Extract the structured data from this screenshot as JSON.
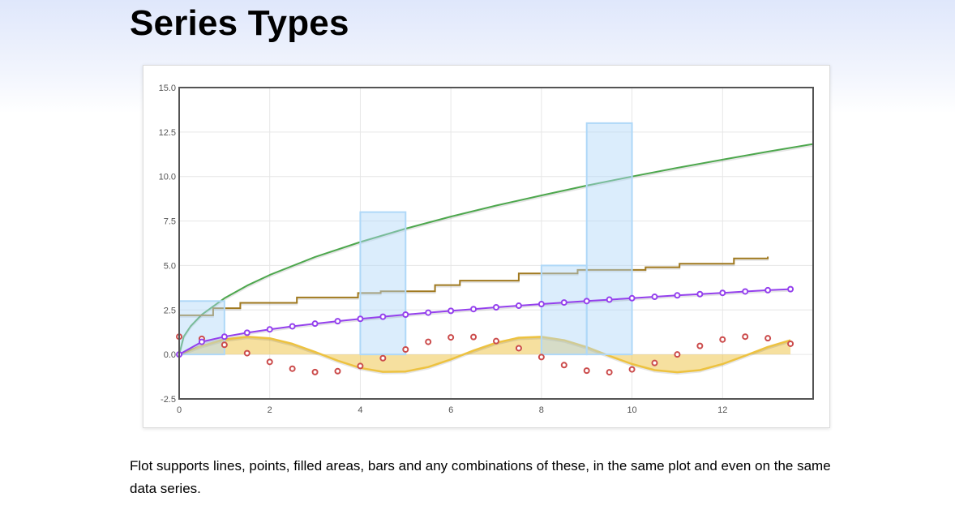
{
  "page": {
    "title": "Series Types",
    "description": "Flot supports lines, points, filled areas, bars and any combinations of these, in the same plot and even on the same data series."
  },
  "chart_data": {
    "type": "line",
    "xlim": [
      0,
      14
    ],
    "ylim": [
      -2.5,
      15
    ],
    "grid": true,
    "legend": "none",
    "x_ticks": [
      0,
      2,
      4,
      6,
      8,
      10,
      12
    ],
    "y_ticks": [
      -2.5,
      0,
      2.5,
      5,
      7.5,
      10,
      12.5,
      15
    ],
    "x_tick_labels": [
      "0",
      "2",
      "4",
      "6",
      "8",
      "10",
      "12"
    ],
    "y_tick_labels": [
      "-2.5",
      "0.0",
      "2.5",
      "5.0",
      "7.5",
      "10.0",
      "12.5",
      "15.0"
    ],
    "series": [
      {
        "kind": "area",
        "description": "sin(x) filled line",
        "color": "#edc240",
        "x": [
          0,
          0.5,
          1,
          1.5,
          2,
          2.5,
          3,
          3.5,
          4,
          4.5,
          5,
          5.5,
          6,
          6.5,
          7,
          7.5,
          8,
          8.5,
          9,
          9.5,
          10,
          10.5,
          11,
          11.5,
          12,
          12.5,
          13,
          13.5
        ],
        "y": [
          0,
          0.48,
          0.84,
          1.0,
          0.91,
          0.6,
          0.14,
          -0.35,
          -0.76,
          -0.98,
          -0.96,
          -0.71,
          -0.28,
          0.22,
          0.66,
          0.94,
          0.99,
          0.8,
          0.41,
          -0.08,
          -0.54,
          -0.88,
          -1.0,
          -0.88,
          -0.54,
          -0.07,
          0.42,
          0.8
        ]
      },
      {
        "kind": "line",
        "description": "sqrt(x * 10) line",
        "color": "#4da74d",
        "x": [
          0,
          0.1,
          0.25,
          0.5,
          1,
          1.5,
          2,
          3,
          4,
          5,
          6,
          7,
          8,
          9,
          10,
          11,
          12,
          13,
          14
        ],
        "y": [
          0,
          1.0,
          1.58,
          2.24,
          3.16,
          3.87,
          4.47,
          5.48,
          6.32,
          7.07,
          7.75,
          8.37,
          8.94,
          9.49,
          10.0,
          10.49,
          10.95,
          11.4,
          11.83
        ]
      },
      {
        "kind": "points",
        "description": "cos(x) points",
        "color": "#cb4b4b",
        "x": [
          0,
          0.5,
          1,
          1.5,
          2,
          2.5,
          3,
          3.5,
          4,
          4.5,
          5,
          5.5,
          6,
          6.5,
          7,
          7.5,
          8,
          8.5,
          9,
          9.5,
          10,
          10.5,
          11,
          11.5,
          12,
          12.5,
          13,
          13.5
        ],
        "y": [
          1.0,
          0.88,
          0.54,
          0.07,
          -0.42,
          -0.8,
          -0.99,
          -0.94,
          -0.65,
          -0.21,
          0.28,
          0.71,
          0.96,
          0.98,
          0.75,
          0.35,
          -0.15,
          -0.6,
          -0.91,
          -1.0,
          -0.84,
          -0.48,
          0.0,
          0.48,
          0.84,
          1.0,
          0.91,
          0.6
        ]
      },
      {
        "kind": "step",
        "description": "steps line",
        "color": "#a0791f",
        "x": [
          0,
          0.75,
          1.35,
          2.6,
          3.95,
          4.45,
          5.65,
          6.2,
          7.5,
          8.8,
          10.3,
          11.05,
          12.25,
          13
        ],
        "y": [
          2.2,
          2.6,
          2.9,
          3.2,
          3.45,
          3.55,
          3.9,
          4.15,
          4.55,
          4.75,
          4.9,
          5.1,
          5.4,
          5.5
        ]
      },
      {
        "kind": "bars",
        "description": "bars",
        "color": "#afd8f8",
        "barWidth": 1,
        "x": [
          0,
          4,
          8,
          9
        ],
        "y": [
          3,
          8,
          5,
          13
        ]
      },
      {
        "kind": "line+points",
        "description": "sqrt(x) line with points",
        "color": "#9440ed",
        "x": [
          0,
          0.5,
          1,
          1.5,
          2,
          2.5,
          3,
          3.5,
          4,
          4.5,
          5,
          5.5,
          6,
          6.5,
          7,
          7.5,
          8,
          8.5,
          9,
          9.5,
          10,
          10.5,
          11,
          11.5,
          12,
          12.5,
          13,
          13.5
        ],
        "y": [
          0,
          0.71,
          1.0,
          1.22,
          1.41,
          1.58,
          1.73,
          1.87,
          2.0,
          2.12,
          2.24,
          2.35,
          2.45,
          2.55,
          2.65,
          2.74,
          2.83,
          2.92,
          3.0,
          3.08,
          3.16,
          3.24,
          3.32,
          3.39,
          3.46,
          3.54,
          3.61,
          3.67
        ]
      }
    ]
  }
}
